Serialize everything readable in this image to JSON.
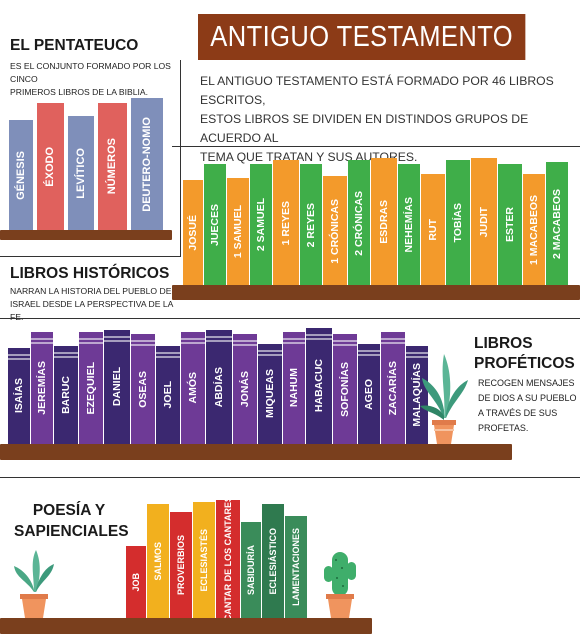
{
  "title": "ANTIGUO TESTAMENTO",
  "intro": [
    "EL ANTIGUO TESTAMENTO ESTÁ FORMADO POR 46 LIBROS ESCRITOS,",
    "ESTOS LIBROS SE DIVIDEN EN DISTINDOS GRUPOS DE ACUERDO AL",
    "TEMA QUE TRATAN Y SUS AUTORES."
  ],
  "pentateuco": {
    "heading": "EL PENTATEUCO",
    "desc": [
      "ES EL CONJUNTO FORMADO POR LOS CINCO",
      "PRIMEROS LIBROS DE LA BIBLIA."
    ],
    "books": [
      {
        "name": "GÉNESIS",
        "color": "#7f8fba"
      },
      {
        "name": "ÉXODO",
        "color": "#e0615d"
      },
      {
        "name": "LEVÍTICO",
        "color": "#7f8fba"
      },
      {
        "name": "NÚMEROS",
        "color": "#e0615d"
      },
      {
        "name": "DEUTERO-NOMIO",
        "color": "#7f8fba"
      }
    ]
  },
  "historicos": {
    "heading": "LIBROS HISTÓRICOS",
    "desc": [
      "NARRAN LA HISTORIA DEL PUEBLO DE",
      "ISRAEL DESDE LA PERSPECTIVA DE LA FE."
    ],
    "books": [
      {
        "name": "JOSUÉ",
        "color": "#f39a2b"
      },
      {
        "name": "JUECES",
        "color": "#3fae49"
      },
      {
        "name": "1 SAMUEL",
        "color": "#f39a2b"
      },
      {
        "name": "2 SAMUEL",
        "color": "#3fae49"
      },
      {
        "name": "1 REYES",
        "color": "#f39a2b"
      },
      {
        "name": "2 REYES",
        "color": "#3fae49"
      },
      {
        "name": "1 CRÓNICAS",
        "color": "#f39a2b"
      },
      {
        "name": "2 CRÓNICAS",
        "color": "#3fae49"
      },
      {
        "name": "ESDRAS",
        "color": "#f39a2b"
      },
      {
        "name": "NEHEMÍAS",
        "color": "#3fae49"
      },
      {
        "name": "RUT",
        "color": "#f39a2b"
      },
      {
        "name": "TOBÍAS",
        "color": "#3fae49"
      },
      {
        "name": "JUDIT",
        "color": "#f39a2b"
      },
      {
        "name": "ESTER",
        "color": "#3fae49"
      },
      {
        "name": "1 MACABEOS",
        "color": "#f39a2b"
      },
      {
        "name": "2 MACABEOS",
        "color": "#3fae49"
      }
    ]
  },
  "profeticos": {
    "heading": [
      "LIBROS",
      "PROFÉTICOS"
    ],
    "desc": [
      "RECOGEN MENSAJES",
      "DE DIOS A SU PUEBLO",
      "A TRAVÉS DE SUS",
      "PROFETAS."
    ],
    "books": [
      {
        "name": "ISAÍAS",
        "color": "#3b2870"
      },
      {
        "name": "JEREMÍAS",
        "color": "#6e3a96"
      },
      {
        "name": "BARUC",
        "color": "#3b2870"
      },
      {
        "name": "EZEQUIEL",
        "color": "#6e3a96"
      },
      {
        "name": "DANIEL",
        "color": "#3b2870"
      },
      {
        "name": "OSEAS",
        "color": "#6e3a96"
      },
      {
        "name": "JOEL",
        "color": "#3b2870"
      },
      {
        "name": "AMÓS",
        "color": "#6e3a96"
      },
      {
        "name": "ABDÍAS",
        "color": "#3b2870"
      },
      {
        "name": "JONÁS",
        "color": "#6e3a96"
      },
      {
        "name": "MIQUEAS",
        "color": "#3b2870"
      },
      {
        "name": "NAHUM",
        "color": "#6e3a96"
      },
      {
        "name": "HABACUC",
        "color": "#3b2870"
      },
      {
        "name": "SOFONÍAS",
        "color": "#6e3a96"
      },
      {
        "name": "AGEO",
        "color": "#3b2870"
      },
      {
        "name": "ZACARÍAS",
        "color": "#6e3a96"
      },
      {
        "name": "MALAQUÍAS",
        "color": "#3b2870"
      }
    ]
  },
  "sapienciales": {
    "heading": [
      "POESÍA Y",
      "SAPIENCIALES"
    ],
    "books": [
      {
        "name": "JOB",
        "color": "#d42d2d"
      },
      {
        "name": "SALMOS",
        "color": "#f2b01e"
      },
      {
        "name": "PROVERBIOS",
        "color": "#d42d2d"
      },
      {
        "name": "ECLESIASTÉS",
        "color": "#f2b01e"
      },
      {
        "name": "CANTAR DE LOS CANTARES",
        "color": "#d42d2d"
      },
      {
        "name": "SABIDURÍA",
        "color": "#3a8c5a"
      },
      {
        "name": "ECLESIÁSTICO",
        "color": "#2f7a4f"
      },
      {
        "name": "LAMENTACIONES",
        "color": "#3a8c5a"
      }
    ]
  }
}
